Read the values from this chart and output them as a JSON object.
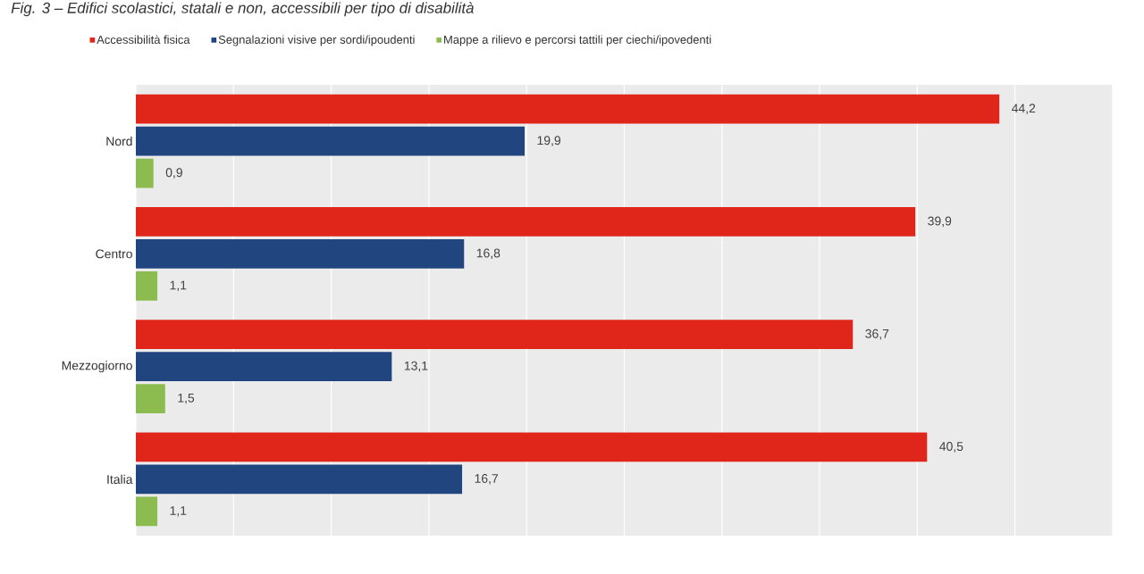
{
  "chart_data": {
    "type": "bar",
    "orientation": "horizontal",
    "title": "Fig. 3 – Edifici scolastici, statali e non, accessibili per tipo di disabilità",
    "categories": [
      "Nord",
      "Centro",
      "Mezzogiorno",
      "Italia"
    ],
    "series": [
      {
        "name": "Accessibilità fisica",
        "color": "#e0251b",
        "values": [
          44.2,
          39.9,
          36.7,
          40.5
        ],
        "value_labels": [
          "44,2",
          "39,9",
          "36,7",
          "40,5"
        ]
      },
      {
        "name": "Segnalazioni visive per sordi/ipoudenti",
        "color": "#21467f",
        "values": [
          19.9,
          16.8,
          13.1,
          16.7
        ],
        "value_labels": [
          "19,9",
          "16,8",
          "13,1",
          "16,7"
        ]
      },
      {
        "name": "Mappe a rilievo e percorsi tattili per ciechi/ipovedenti",
        "color": "#8cbc4f",
        "values": [
          0.9,
          1.1,
          1.5,
          1.1
        ],
        "value_labels": [
          "0,9",
          "1,1",
          "1,5",
          "1,1"
        ]
      }
    ],
    "xlim": [
      0,
      50
    ],
    "xticks": [
      {
        "value": 0,
        "label": null
      },
      {
        "value": 5,
        "label": null
      },
      {
        "value": 10,
        "label": null
      },
      {
        "value": 15,
        "label": null
      },
      {
        "value": 20,
        "label": null
      },
      {
        "value": 25,
        "label": null
      },
      {
        "value": 30,
        "label": null
      },
      {
        "value": 35,
        "label": null
      },
      {
        "value": 40,
        "label": null
      },
      {
        "value": 45,
        "label": null
      },
      {
        "value": 50,
        "label": null
      }
    ],
    "tick_labels": "y",
    "grid": "x",
    "legend": "top left"
  }
}
